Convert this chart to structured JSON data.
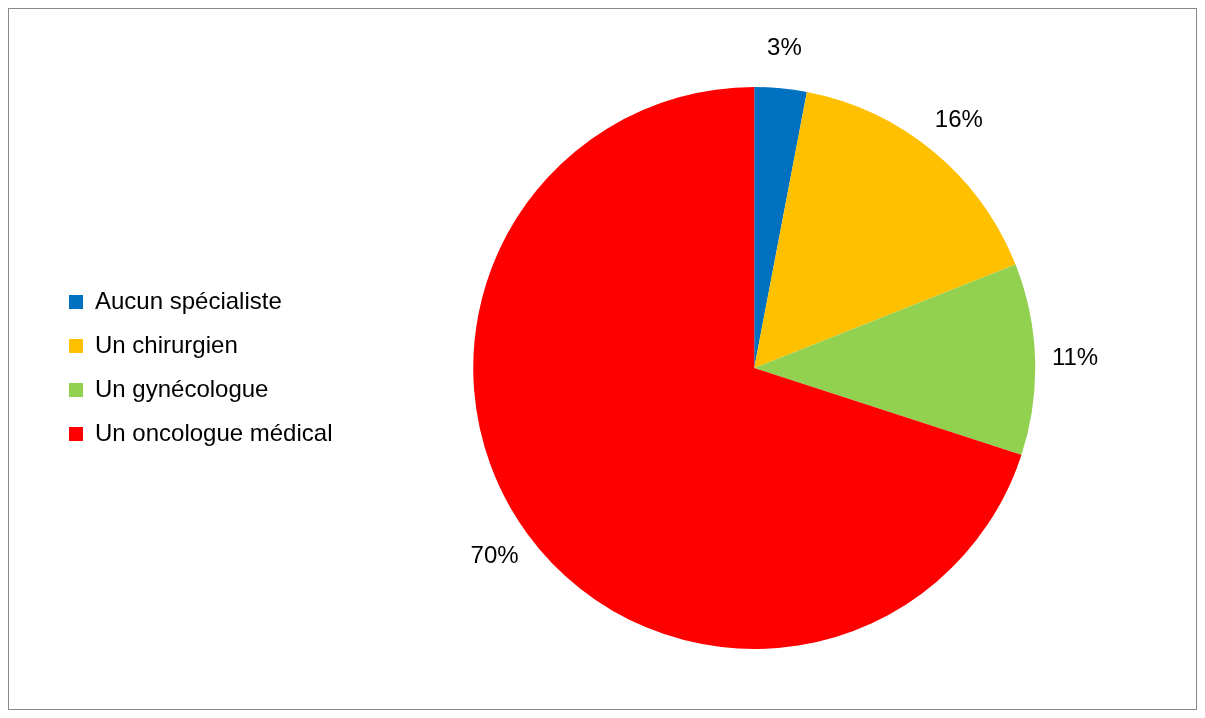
{
  "chart_data": {
    "type": "pie",
    "categories": [
      "Aucun spécialiste",
      "Un chirurgien",
      "Un gynécologue",
      "Un oncologue médical"
    ],
    "values": [
      3,
      16,
      11,
      70
    ],
    "colors": [
      "#0070c0",
      "#ffc000",
      "#92d050",
      "#ff0000"
    ],
    "value_labels": [
      "3%",
      "16%",
      "11%",
      "70%"
    ],
    "legend": "left"
  }
}
